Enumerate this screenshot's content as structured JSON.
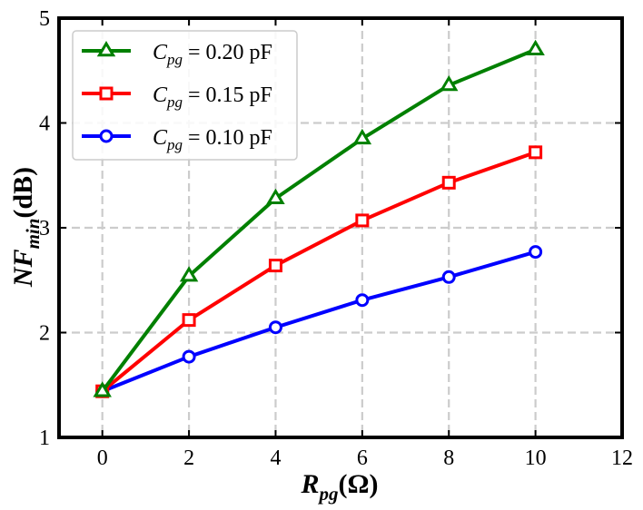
{
  "chart_data": {
    "type": "line",
    "xlabel": {
      "main": "R",
      "sub": "pg",
      "unit": "(Ω)"
    },
    "ylabel": {
      "main": "NF",
      "sub": "min",
      "unit": "(dB)"
    },
    "xlim": [
      -1,
      12
    ],
    "ylim": [
      1,
      5
    ],
    "xticks": [
      0,
      2,
      4,
      6,
      8,
      10,
      12
    ],
    "yticks": [
      1,
      2,
      3,
      4,
      5
    ],
    "grid": true,
    "grid_style": "dashed",
    "legend_position": "top-left",
    "x": [
      0,
      2,
      4,
      6,
      8,
      10
    ],
    "series": [
      {
        "name": "C_pg = 0.20 pF",
        "label_main": "C",
        "label_sub": "pg",
        "label_rest": " = 0.20 pF",
        "values": [
          1.44,
          2.54,
          3.28,
          3.85,
          4.36,
          4.7
        ],
        "color": "#008000",
        "marker": "triangle"
      },
      {
        "name": "C_pg = 0.15 pF",
        "label_main": "C",
        "label_sub": "pg",
        "label_rest": " = 0.15 pF",
        "values": [
          1.44,
          2.12,
          2.64,
          3.07,
          3.43,
          3.72
        ],
        "color": "#ff0000",
        "marker": "square"
      },
      {
        "name": "C_pg = 0.10 pF",
        "label_main": "C",
        "label_sub": "pg",
        "label_rest": " = 0.10 pF",
        "values": [
          1.44,
          1.77,
          2.05,
          2.31,
          2.53,
          2.77
        ],
        "color": "#0000ff",
        "marker": "circle"
      }
    ]
  }
}
